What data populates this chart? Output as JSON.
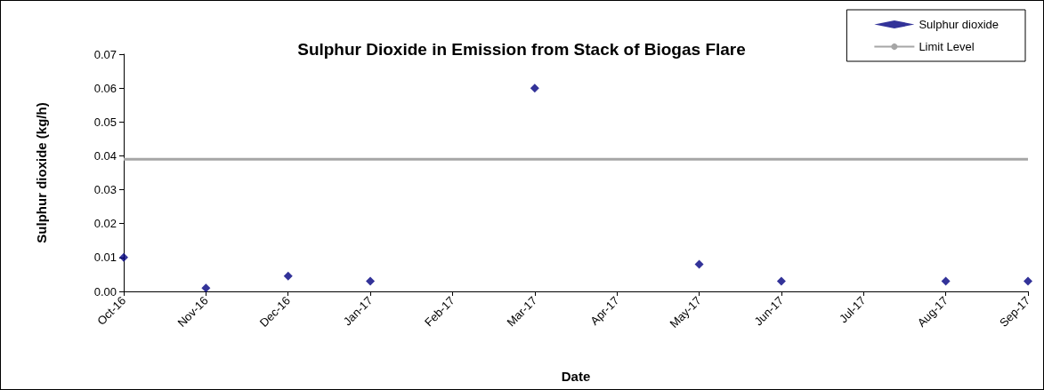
{
  "chart_data": {
    "type": "scatter",
    "title": "Sulphur Dioxide in Emission from Stack of Biogas Flare",
    "xlabel": "Date",
    "ylabel": "Sulphur dioxide (kg/h)",
    "categories": [
      "Oct-16",
      "Nov-16",
      "Dec-16",
      "Jan-17",
      "Feb-17",
      "Mar-17",
      "Apr-17",
      "May-17",
      "Jun-17",
      "Jul-17",
      "Aug-17",
      "Sep-17"
    ],
    "series": [
      {
        "name": "Sulphur dioxide",
        "color": "#000080",
        "x": [
          "Oct-16",
          "Nov-16",
          "Dec-16",
          "Jan-17",
          "Mar-17",
          "May-17",
          "Jun-17",
          "Aug-17",
          "Sep-17"
        ],
        "values": [
          0.01,
          0.001,
          0.0045,
          0.003,
          0.06,
          0.008,
          0.003,
          0.003,
          0.003
        ]
      }
    ],
    "ref_lines": [
      {
        "axis": "y",
        "value": 0.039,
        "label": "Limit Level",
        "color": "#a6a6a6",
        "line_style": "solid"
      }
    ],
    "ylim": [
      0,
      0.07
    ],
    "yticks": [
      {
        "value": 0,
        "label": "0.00"
      },
      0.01,
      0.02,
      0.03,
      0.04,
      0.05,
      0.06,
      0.07
    ],
    "marker": "diamond",
    "grid": false,
    "legend": "top right"
  }
}
